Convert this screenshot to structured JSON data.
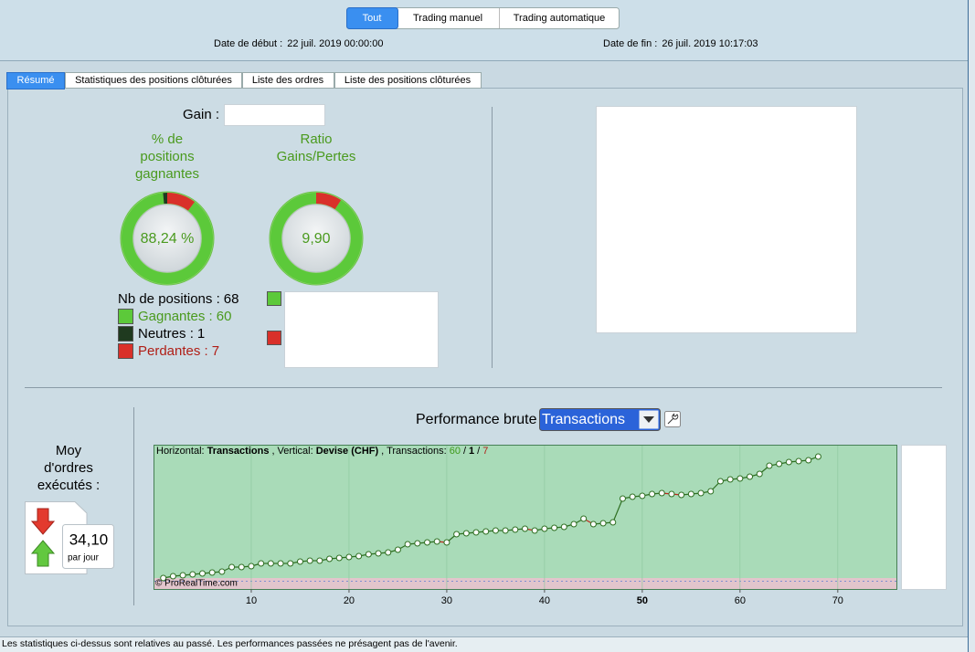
{
  "toolbar": {
    "buttons": [
      "Tout",
      "Trading manuel",
      "Trading automatique"
    ]
  },
  "dates": {
    "start_label": "Date de début :",
    "start": "22 juil. 2019 00:00:00",
    "end_label": "Date de fin :",
    "end": "26 juil. 2019 10:17:03"
  },
  "tabs": [
    "Résumé",
    "Statistiques des positions clôturées",
    "Liste des ordres",
    "Liste des positions clôturées"
  ],
  "summary": {
    "gain_label": "Gain :",
    "winning_title": [
      "% de",
      "positions",
      "gagnantes"
    ],
    "ratio_title": [
      "Ratio",
      "Gains/Pertes"
    ],
    "winning_pct": {
      "value": 88.24,
      "label": "88,24 %"
    },
    "ratio": {
      "value": 9.9,
      "label": "9,90"
    },
    "positions": {
      "label": "Nb de positions :",
      "value": 68
    },
    "breakdown": [
      {
        "name": "Gagnantes :",
        "value": 60,
        "color": "#5cc93a"
      },
      {
        "name": "Neutres :",
        "value": 1,
        "color": "#1f3a1f"
      },
      {
        "name": "Perdantes :",
        "value": 7,
        "color": "#d9302a"
      }
    ]
  },
  "orders": {
    "title": [
      "Moy",
      "d'ordres",
      "exécutés :"
    ],
    "per_day": {
      "value": 34.1,
      "label": "34,10"
    },
    "unit": "par jour"
  },
  "performance": {
    "title": "Performance brute",
    "mode": "Transactions"
  },
  "chart_data": {
    "type": "line",
    "note": {
      "x_prefix": "Horizontal:",
      "x_label": "Transactions",
      "y_prefix": ", Vertical:",
      "y_label": "Devise (CHF)",
      "count_prefix": ", Transactions:",
      "separator": "/"
    },
    "credit": "© ProRealTime.com",
    "x": [
      1,
      2,
      3,
      4,
      5,
      6,
      7,
      8,
      9,
      10,
      11,
      12,
      13,
      14,
      15,
      16,
      17,
      18,
      19,
      20,
      21,
      22,
      23,
      24,
      25,
      26,
      27,
      28,
      29,
      30,
      31,
      32,
      33,
      34,
      35,
      36,
      37,
      38,
      39,
      40,
      41,
      42,
      43,
      44,
      45,
      46,
      47,
      48,
      49,
      50,
      51,
      52,
      53,
      54,
      55,
      56,
      57,
      58,
      59,
      60,
      61,
      62,
      63,
      64,
      65,
      66,
      67,
      68
    ],
    "values": [
      3,
      5,
      6,
      7,
      8,
      9,
      10,
      15,
      15,
      16,
      19,
      19,
      19,
      19,
      21,
      22,
      22,
      24,
      25,
      26,
      27,
      29,
      30,
      31,
      34,
      40,
      41,
      42,
      43,
      42,
      51,
      52,
      53,
      54,
      55,
      55,
      56,
      57,
      55,
      57,
      58,
      59,
      62,
      68,
      62,
      63,
      64,
      90,
      92,
      93,
      95,
      96,
      95,
      94,
      95,
      96,
      98,
      109,
      111,
      112,
      114,
      117,
      126,
      128,
      130,
      131,
      132,
      136
    ],
    "xlim": [
      0,
      76
    ],
    "ylim": [
      0,
      148
    ],
    "xticks": [
      10,
      20,
      30,
      40,
      50,
      60,
      70
    ],
    "grid": true,
    "colors": {
      "up": "#2f6f22",
      "down": "#c0281f",
      "marker": "#ffffff"
    }
  },
  "footer": "Les statistiques ci-dessus sont relatives au passé. Les performances passées ne présagent pas de l'avenir."
}
